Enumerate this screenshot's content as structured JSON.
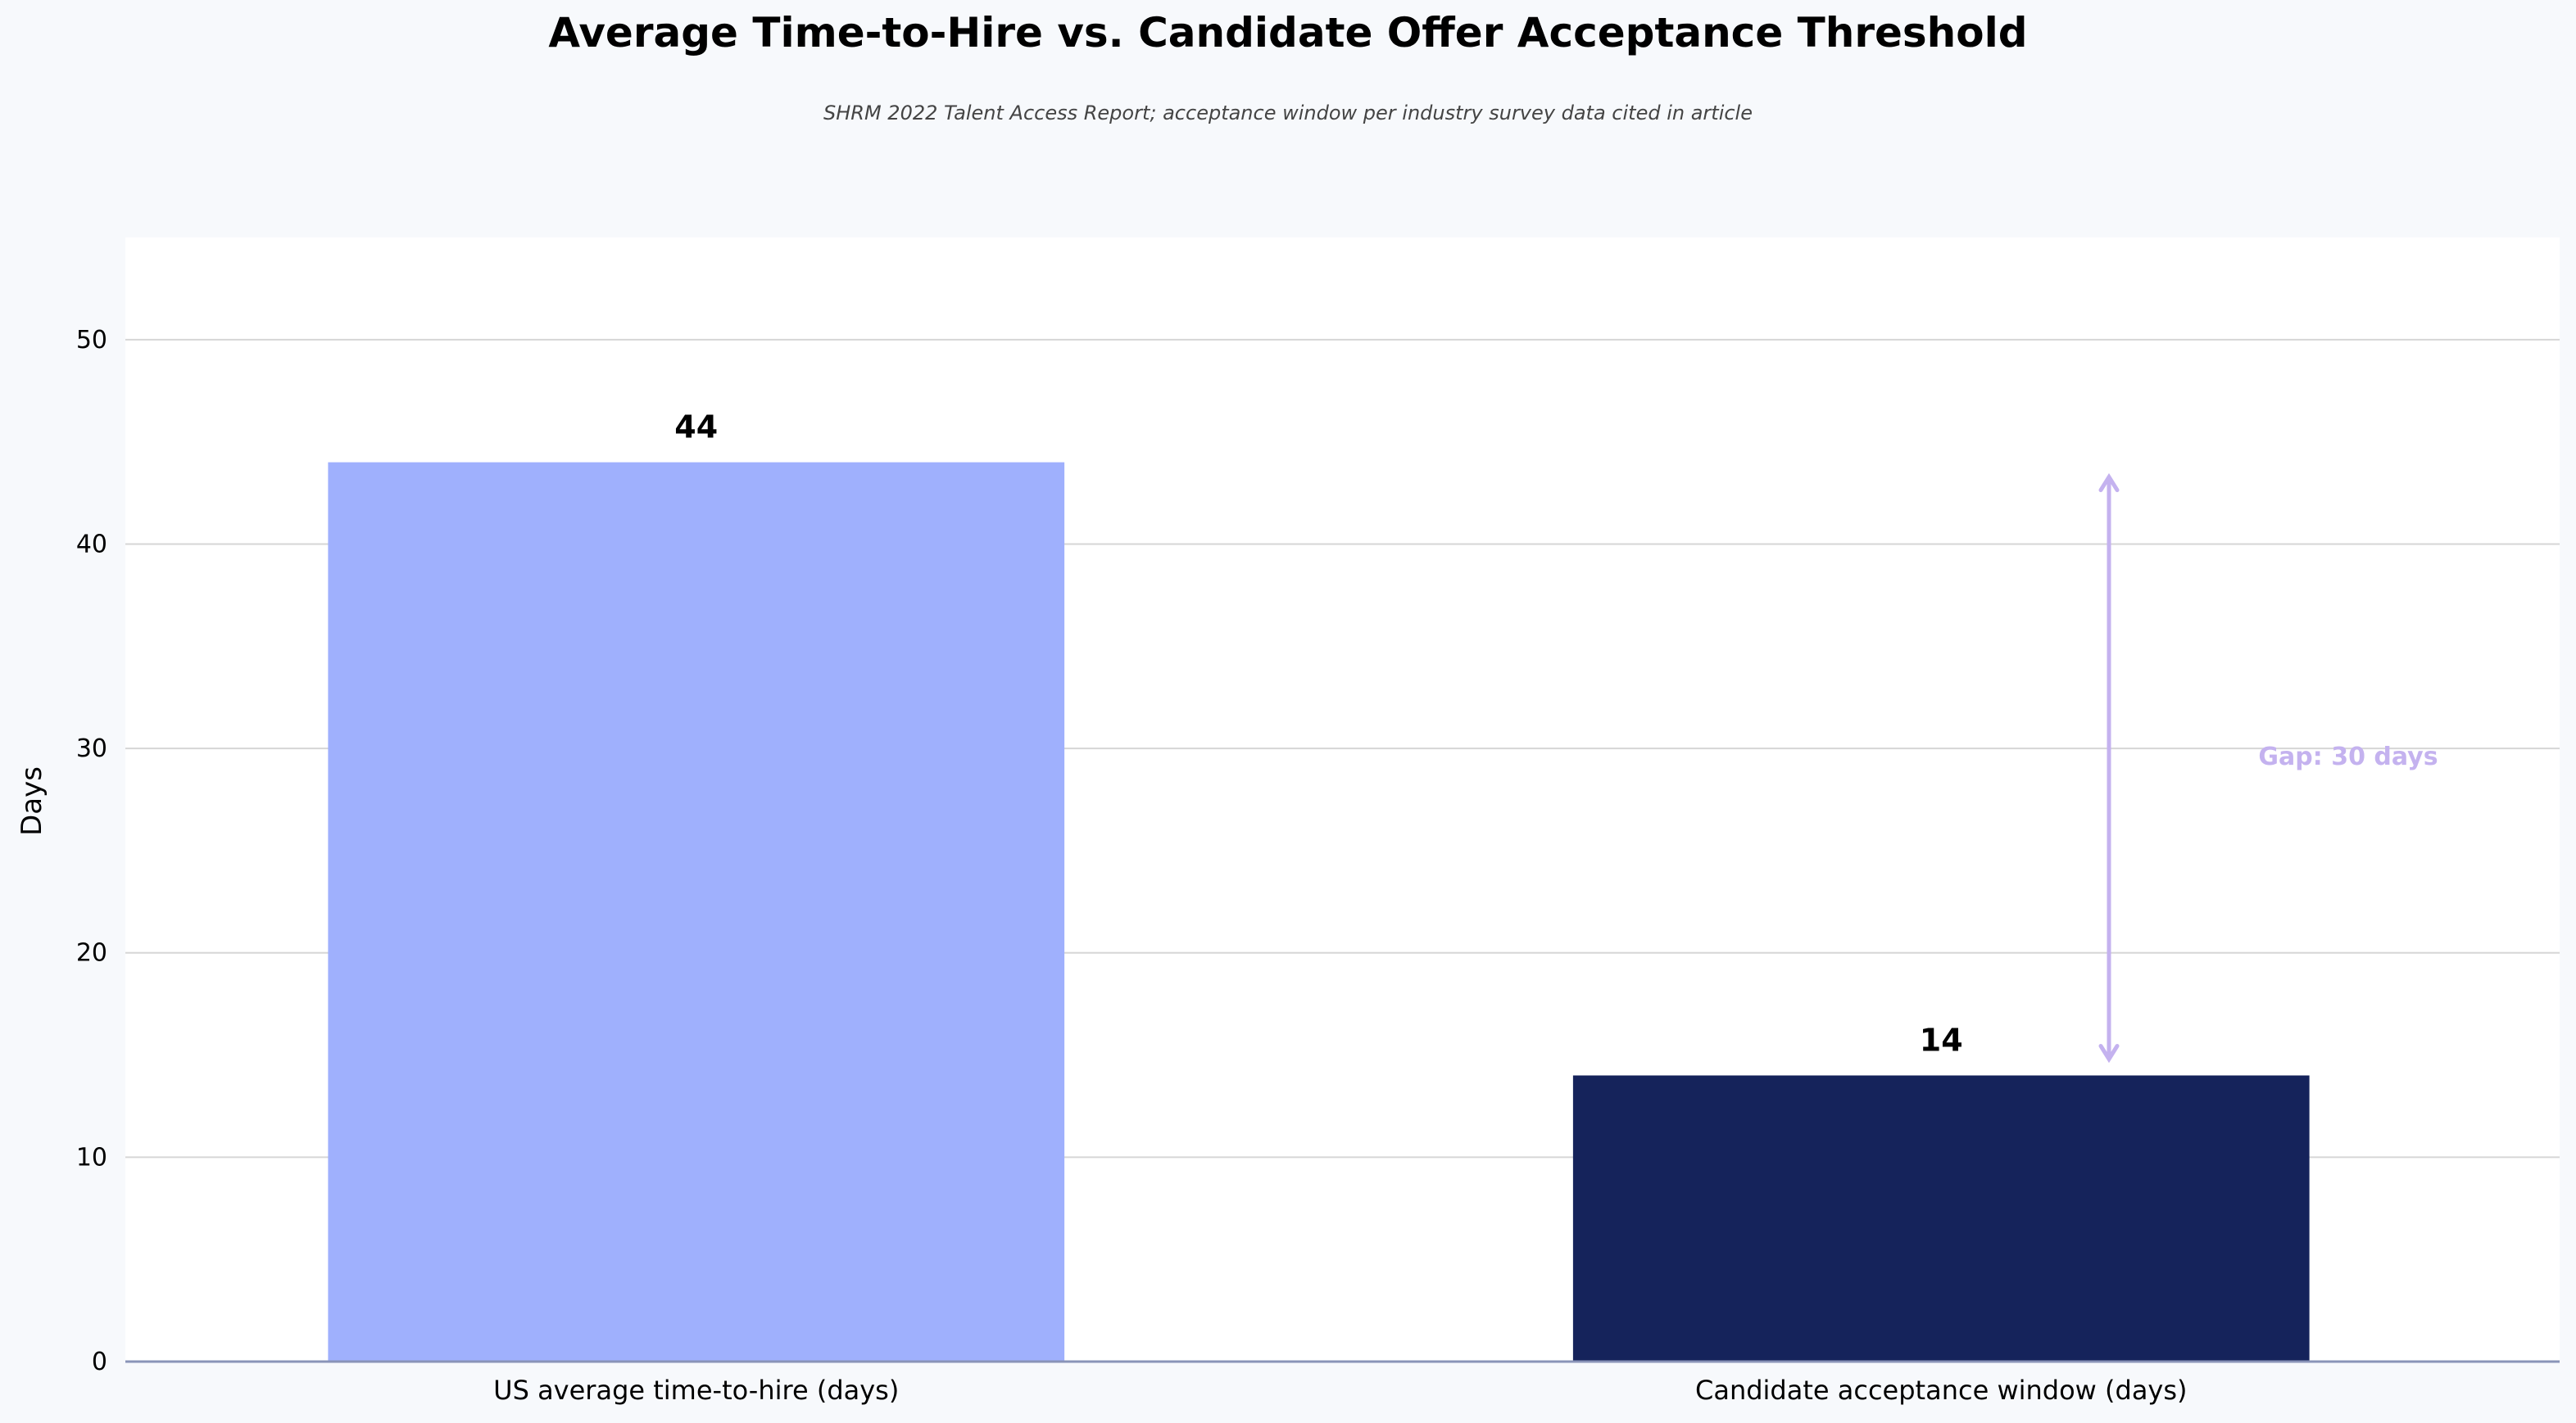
{
  "chart_data": {
    "type": "bar",
    "title": "Average Time-to-Hire vs. Candidate Offer Acceptance Threshold",
    "subtitle": "SHRM 2022 Talent Access Report; acceptance window per industry survey data cited in article",
    "xlabel": "",
    "ylabel": "Days",
    "ylim": [
      0,
      55
    ],
    "yticks": [
      0,
      10,
      20,
      30,
      40,
      50
    ],
    "grid": true,
    "categories": [
      "US average time-to-hire (days)",
      "Candidate acceptance window (days)"
    ],
    "values": [
      44,
      14
    ],
    "value_labels": [
      "44",
      "14"
    ],
    "bar_colors": [
      "#9fb0fd",
      "#15235b"
    ],
    "annotation": {
      "text": "Gap: 30 days",
      "from_value": 44,
      "to_value": 14,
      "color": "#c4b2ef"
    }
  },
  "colors": {
    "background": "#f7f9fc",
    "plot_background": "#ffffff",
    "grid": "#d6d6d6",
    "axis": "#8a94b8"
  }
}
